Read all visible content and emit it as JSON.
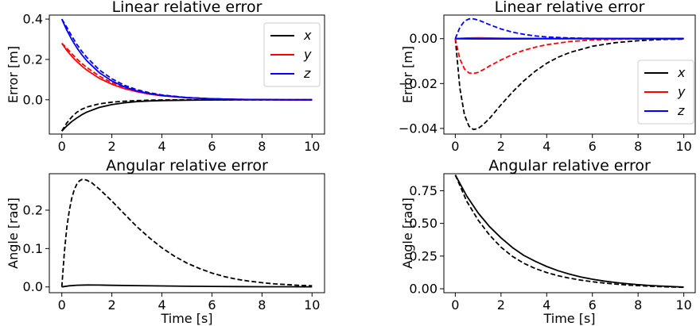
{
  "chart_data": [
    {
      "type": "line",
      "title": "Linear relative error",
      "xlabel": "",
      "ylabel": "Error [m]",
      "xlim": [
        -0.5,
        10.5
      ],
      "ylim": [
        -0.17,
        0.42
      ],
      "xticks": [
        0,
        2,
        4,
        6,
        8,
        10
      ],
      "yticks": [
        0.0,
        0.2,
        0.4
      ],
      "xtick_labels": [
        "0",
        "2",
        "4",
        "6",
        "8",
        "10"
      ],
      "ytick_labels": [
        "0.0",
        "0.2",
        "0.4"
      ],
      "legend": {
        "position": "top-right",
        "entries": [
          "x",
          "y",
          "z"
        ]
      },
      "series": [
        {
          "name": "x",
          "color": "#000000",
          "style": "solid",
          "x": [
            0,
            0.2,
            0.4,
            0.6,
            0.8,
            1,
            1.5,
            2,
            2.5,
            3,
            3.5,
            4,
            5,
            6,
            7,
            8,
            9,
            10
          ],
          "y": [
            -0.155,
            -0.13,
            -0.108,
            -0.09,
            -0.074,
            -0.061,
            -0.038,
            -0.024,
            -0.015,
            -0.009,
            -0.006,
            -0.004,
            -0.002,
            -0.001,
            0,
            0,
            0,
            0
          ]
        },
        {
          "name": "x",
          "color": "#000000",
          "style": "dashed",
          "x": [
            0,
            0.2,
            0.4,
            0.6,
            0.8,
            1,
            1.5,
            2,
            2.5,
            3,
            3.5,
            4,
            5,
            6,
            7,
            8,
            9,
            10
          ],
          "y": [
            -0.155,
            -0.115,
            -0.085,
            -0.062,
            -0.047,
            -0.036,
            -0.02,
            -0.012,
            -0.007,
            -0.004,
            -0.002,
            -0.001,
            0,
            0,
            0,
            0,
            0,
            0
          ]
        },
        {
          "name": "y",
          "color": "#ff0000",
          "style": "solid",
          "x": [
            0,
            0.2,
            0.4,
            0.6,
            0.8,
            1,
            1.5,
            2,
            2.5,
            3,
            3.5,
            4,
            5,
            6,
            7,
            8,
            9,
            10
          ],
          "y": [
            0.28,
            0.245,
            0.215,
            0.19,
            0.167,
            0.147,
            0.106,
            0.077,
            0.055,
            0.04,
            0.028,
            0.02,
            0.01,
            0.005,
            0.002,
            0.001,
            0,
            0
          ]
        },
        {
          "name": "y",
          "color": "#ff0000",
          "style": "dashed",
          "x": [
            0,
            0.2,
            0.4,
            0.6,
            0.8,
            1,
            1.5,
            2,
            2.5,
            3,
            3.5,
            4,
            5,
            6,
            7,
            8,
            9,
            10
          ],
          "y": [
            0.28,
            0.255,
            0.228,
            0.203,
            0.18,
            0.16,
            0.117,
            0.085,
            0.061,
            0.044,
            0.031,
            0.022,
            0.011,
            0.005,
            0.002,
            0.001,
            0,
            0
          ]
        },
        {
          "name": "z",
          "color": "#0000ff",
          "style": "solid",
          "x": [
            0,
            0.2,
            0.4,
            0.6,
            0.8,
            1,
            1.5,
            2,
            2.5,
            3,
            3.5,
            4,
            5,
            6,
            7,
            8,
            9,
            10
          ],
          "y": [
            0.4,
            0.345,
            0.298,
            0.258,
            0.223,
            0.193,
            0.134,
            0.093,
            0.064,
            0.044,
            0.031,
            0.021,
            0.01,
            0.005,
            0.002,
            0.001,
            0,
            0
          ]
        },
        {
          "name": "z",
          "color": "#0000ff",
          "style": "dashed",
          "x": [
            0,
            0.2,
            0.4,
            0.6,
            0.8,
            1,
            1.5,
            2,
            2.5,
            3,
            3.5,
            4,
            5,
            6,
            7,
            8,
            9,
            10
          ],
          "y": [
            0.4,
            0.36,
            0.315,
            0.275,
            0.24,
            0.21,
            0.148,
            0.104,
            0.072,
            0.05,
            0.035,
            0.024,
            0.011,
            0.005,
            0.002,
            0.001,
            0,
            0
          ]
        }
      ]
    },
    {
      "type": "line",
      "title": "Linear relative error",
      "xlabel": "",
      "ylabel": "Error [m]",
      "xlim": [
        -0.5,
        10.5
      ],
      "ylim": [
        -0.0425,
        0.0105
      ],
      "xticks": [
        0,
        2,
        4,
        6,
        8,
        10
      ],
      "yticks": [
        -0.04,
        -0.02,
        0.0
      ],
      "xtick_labels": [
        "0",
        "2",
        "4",
        "6",
        "8",
        "10"
      ],
      "ytick_labels": [
        "−0.04",
        "−0.02",
        "0.00"
      ],
      "legend": {
        "position": "right",
        "entries": [
          "x",
          "y",
          "z"
        ]
      },
      "series": [
        {
          "name": "x",
          "color": "#000000",
          "style": "solid",
          "x": [
            0,
            1,
            2,
            3,
            4,
            5,
            6,
            7,
            8,
            9,
            10
          ],
          "y": [
            0,
            -0.0001,
            -0.0001,
            -0.0001,
            0,
            0,
            0,
            0,
            0,
            0,
            0
          ]
        },
        {
          "name": "x",
          "color": "#000000",
          "style": "dashed",
          "x": [
            0,
            0.2,
            0.4,
            0.6,
            0.8,
            1,
            1.2,
            1.5,
            2,
            2.5,
            3,
            3.5,
            4,
            4.5,
            5,
            6,
            7,
            8,
            9,
            10
          ],
          "y": [
            0,
            -0.022,
            -0.034,
            -0.039,
            -0.0405,
            -0.04,
            -0.0385,
            -0.0355,
            -0.0295,
            -0.0238,
            -0.0188,
            -0.0145,
            -0.011,
            -0.0083,
            -0.0062,
            -0.0034,
            -0.0018,
            -0.0009,
            -0.0004,
            -0.0002
          ]
        },
        {
          "name": "y",
          "color": "#ff0000",
          "style": "solid",
          "x": [
            0,
            0.5,
            1,
            1.5,
            2,
            3,
            4,
            5,
            10
          ],
          "y": [
            0,
            0.0003,
            0.0004,
            0.0003,
            0.0002,
            0.0001,
            0,
            0,
            0
          ]
        },
        {
          "name": "y",
          "color": "#ff0000",
          "style": "dashed",
          "x": [
            0,
            0.2,
            0.4,
            0.6,
            0.8,
            1,
            1.2,
            1.5,
            2,
            2.5,
            3,
            3.5,
            4,
            5,
            6,
            7,
            8,
            10
          ],
          "y": [
            0,
            -0.009,
            -0.0135,
            -0.0153,
            -0.0155,
            -0.015,
            -0.014,
            -0.0122,
            -0.0095,
            -0.0071,
            -0.0052,
            -0.0038,
            -0.0027,
            -0.0013,
            -0.0006,
            -0.0003,
            -0.0001,
            0
          ]
        },
        {
          "name": "z",
          "color": "#0000ff",
          "style": "solid",
          "x": [
            0,
            1,
            2,
            3,
            4,
            5,
            6,
            7,
            8,
            9,
            10
          ],
          "y": [
            0,
            -0.0001,
            -0.0001,
            0,
            0,
            0,
            0,
            0,
            0,
            0,
            0
          ]
        },
        {
          "name": "z",
          "color": "#0000ff",
          "style": "dashed",
          "x": [
            0,
            0.2,
            0.4,
            0.6,
            0.8,
            1,
            1.2,
            1.5,
            2,
            2.5,
            3,
            3.5,
            4,
            5,
            6,
            7,
            8,
            10
          ],
          "y": [
            0,
            0.005,
            0.0078,
            0.0088,
            0.0088,
            0.0083,
            0.0075,
            0.0062,
            0.0043,
            0.0029,
            0.0019,
            0.0012,
            0.0008,
            0.0003,
            0.0001,
            0,
            0,
            0
          ]
        }
      ]
    },
    {
      "type": "line",
      "title": "Angular relative error",
      "xlabel": "Time [s]",
      "ylabel": "Angle [rad]",
      "xlim": [
        -0.5,
        10.5
      ],
      "ylim": [
        -0.015,
        0.295
      ],
      "xticks": [
        0,
        2,
        4,
        6,
        8,
        10
      ],
      "yticks": [
        0.0,
        0.1,
        0.2
      ],
      "xtick_labels": [
        "0",
        "2",
        "4",
        "6",
        "8",
        "10"
      ],
      "ytick_labels": [
        "0.0",
        "0.1",
        "0.2"
      ],
      "series": [
        {
          "name": "",
          "color": "#000000",
          "style": "solid",
          "x": [
            0,
            0.3,
            0.6,
            1,
            1.5,
            2,
            3,
            4,
            5,
            6,
            7,
            8,
            9,
            10
          ],
          "y": [
            0,
            0.003,
            0.0045,
            0.005,
            0.0048,
            0.0043,
            0.0033,
            0.0025,
            0.0018,
            0.0013,
            0.0009,
            0.0006,
            0.0004,
            0.0003
          ]
        },
        {
          "name": "",
          "color": "#000000",
          "style": "dashed",
          "x": [
            0,
            0.1,
            0.2,
            0.3,
            0.4,
            0.5,
            0.6,
            0.7,
            0.8,
            0.9,
            1,
            1.2,
            1.5,
            2,
            2.5,
            3,
            3.5,
            4,
            4.5,
            5,
            5.5,
            6,
            6.5,
            7,
            7.5,
            8,
            8.5,
            9,
            9.5,
            10
          ],
          "y": [
            0,
            0.09,
            0.155,
            0.2,
            0.232,
            0.254,
            0.268,
            0.276,
            0.28,
            0.28,
            0.278,
            0.271,
            0.255,
            0.224,
            0.19,
            0.157,
            0.128,
            0.102,
            0.08,
            0.062,
            0.048,
            0.036,
            0.027,
            0.02,
            0.015,
            0.011,
            0.008,
            0.006,
            0.004,
            0.003
          ]
        }
      ]
    },
    {
      "type": "line",
      "title": "Angular relative error",
      "xlabel": "Time [s]",
      "ylabel": "Angle [rad]",
      "xlim": [
        -0.5,
        10.5
      ],
      "ylim": [
        -0.03,
        0.88
      ],
      "xticks": [
        0,
        2,
        4,
        6,
        8,
        10
      ],
      "yticks": [
        0.0,
        0.25,
        0.5,
        0.75
      ],
      "xtick_labels": [
        "0",
        "2",
        "4",
        "6",
        "8",
        "10"
      ],
      "ytick_labels": [
        "0.00",
        "0.25",
        "0.50",
        "0.75"
      ],
      "series": [
        {
          "name": "",
          "color": "#000000",
          "style": "solid",
          "x": [
            0,
            0.5,
            1,
            1.5,
            2,
            2.5,
            3,
            3.5,
            4,
            4.5,
            5,
            5.5,
            6,
            6.5,
            7,
            7.5,
            8,
            8.5,
            9,
            9.5,
            10
          ],
          "y": [
            0.87,
            0.71,
            0.58,
            0.475,
            0.39,
            0.315,
            0.255,
            0.21,
            0.17,
            0.138,
            0.112,
            0.09,
            0.073,
            0.059,
            0.048,
            0.039,
            0.031,
            0.025,
            0.021,
            0.017,
            0.013
          ]
        },
        {
          "name": "",
          "color": "#000000",
          "style": "dashed",
          "x": [
            0,
            0.5,
            1,
            1.5,
            2,
            2.5,
            3,
            3.5,
            4,
            4.5,
            5,
            5.5,
            6,
            6.5,
            7,
            7.5,
            8,
            8.5,
            9,
            9.5,
            10
          ],
          "y": [
            0.87,
            0.67,
            0.525,
            0.41,
            0.318,
            0.248,
            0.195,
            0.155,
            0.124,
            0.1,
            0.081,
            0.066,
            0.054,
            0.044,
            0.036,
            0.029,
            0.024,
            0.02,
            0.016,
            0.013,
            0.011
          ]
        }
      ]
    }
  ]
}
